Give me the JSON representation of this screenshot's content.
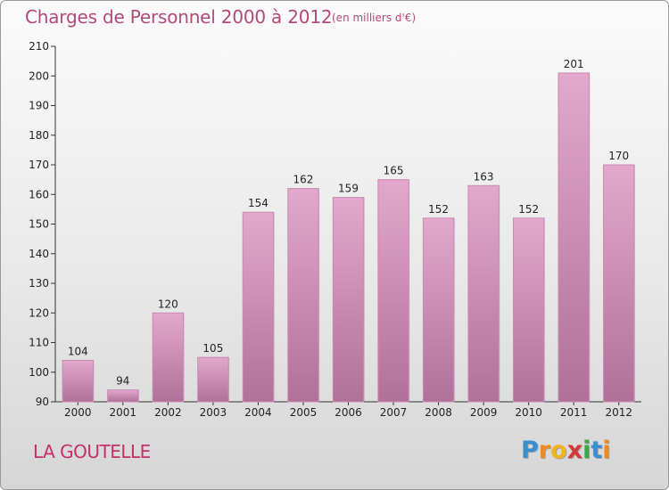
{
  "title": "Charges de Personnel 2000 à 2012",
  "subtitle": "(en milliers d'€)",
  "commune": "LA GOUTELLE",
  "logo": {
    "letters": [
      "P",
      "r",
      "o",
      "x",
      "i",
      "t",
      "i"
    ],
    "colors": [
      "#3a8fd0",
      "#f08a1c",
      "#f0b41c",
      "#d23a3a",
      "#3aa84a",
      "#3a8fd0",
      "#f08a1c"
    ]
  },
  "colors": {
    "bar_top": "#e4a8cc",
    "bar_bottom": "#b0709a",
    "title": "#b04a7c",
    "commune": "#c4306a"
  },
  "chart_data": {
    "type": "bar",
    "title": "Charges de Personnel 2000 à 2012",
    "subtitle": "(en milliers d'€)",
    "xlabel": "",
    "ylabel": "",
    "categories": [
      "2000",
      "2001",
      "2002",
      "2003",
      "2004",
      "2005",
      "2006",
      "2007",
      "2008",
      "2009",
      "2010",
      "2011",
      "2012"
    ],
    "values": [
      104,
      94,
      120,
      105,
      154,
      162,
      159,
      165,
      152,
      163,
      152,
      201,
      170
    ],
    "ylim": [
      90,
      210
    ],
    "yticks": [
      90,
      100,
      110,
      120,
      130,
      140,
      150,
      160,
      170,
      180,
      190,
      200,
      210
    ],
    "grid": false,
    "legend": "none"
  }
}
